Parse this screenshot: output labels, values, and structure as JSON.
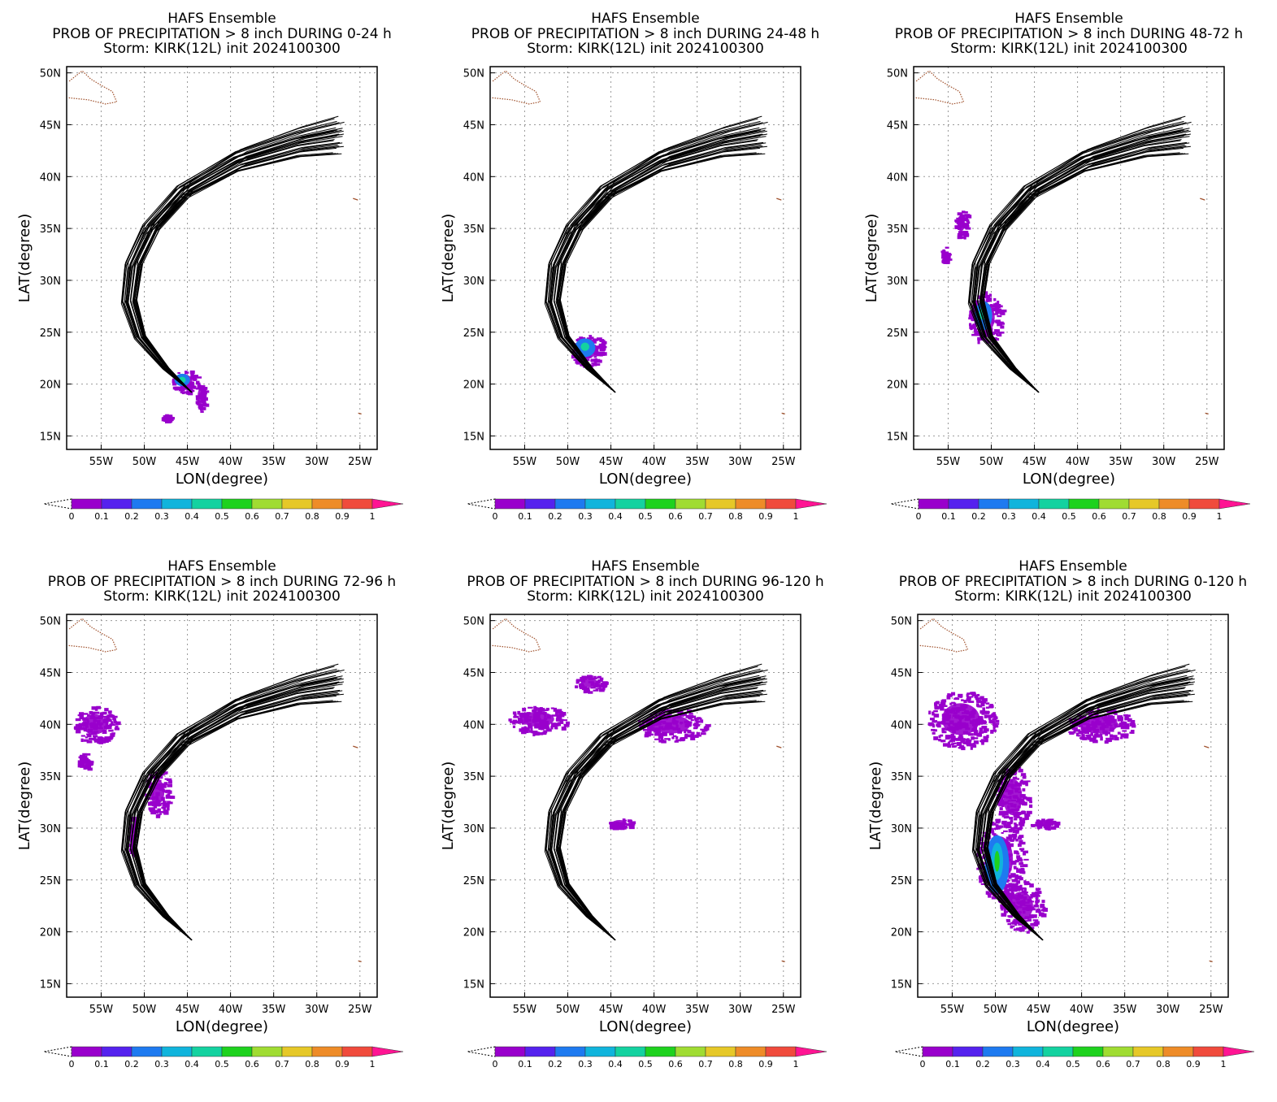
{
  "figure": {
    "header": "HAFS Ensemble",
    "storm_line": "Storm: KIRK(12L) init 2024100300",
    "xlabel": "LON(degree)",
    "ylabel": "LAT(degree)",
    "x_ticks": [
      "55W",
      "50W",
      "45W",
      "40W",
      "35W",
      "30W",
      "25W"
    ],
    "x_tick_values": [
      -55,
      -50,
      -45,
      -40,
      -35,
      -30,
      -25
    ],
    "y_ticks": [
      "15N",
      "20N",
      "25N",
      "30N",
      "35N",
      "40N",
      "45N",
      "50N"
    ],
    "y_tick_values": [
      15,
      20,
      25,
      30,
      35,
      40,
      45,
      50
    ],
    "xlim": [
      -59,
      -23
    ],
    "ylim": [
      13.7,
      50.6
    ],
    "grid": true,
    "colorbar": {
      "ticks": [
        "0",
        "0.1",
        "0.2",
        "0.3",
        "0.4",
        "0.5",
        "0.6",
        "0.7",
        "0.8",
        "0.9",
        "1"
      ],
      "colors": [
        "#9900cc",
        "#5522ee",
        "#1e7af0",
        "#10b4dc",
        "#14d2a0",
        "#1ed21e",
        "#a0dc32",
        "#e6c828",
        "#ee8c28",
        "#f04b3c"
      ],
      "over_color": "#ff1493"
    },
    "colors": {
      "track": "#000000",
      "coast": "#a0522d",
      "grid": "#999999"
    }
  },
  "chart_data": [
    {
      "type": "map",
      "title_line2": "PROB OF PRECIPITATION > 8 inch DURING  0-24 h"
    },
    {
      "type": "map",
      "title_line2": "PROB OF PRECIPITATION > 8 inch DURING 24-48 h"
    },
    {
      "type": "map",
      "title_line2": "PROB OF PRECIPITATION > 8 inch DURING 48-72 h"
    },
    {
      "type": "map",
      "title_line2": "PROB OF PRECIPITATION > 8 inch DURING 72-96 h"
    },
    {
      "type": "map",
      "title_line2": "PROB OF PRECIPITATION > 8 inch DURING 96-120 h"
    },
    {
      "type": "map",
      "title_line2": "PROB OF PRECIPITATION > 8 inch DURING 0-120 h"
    }
  ]
}
